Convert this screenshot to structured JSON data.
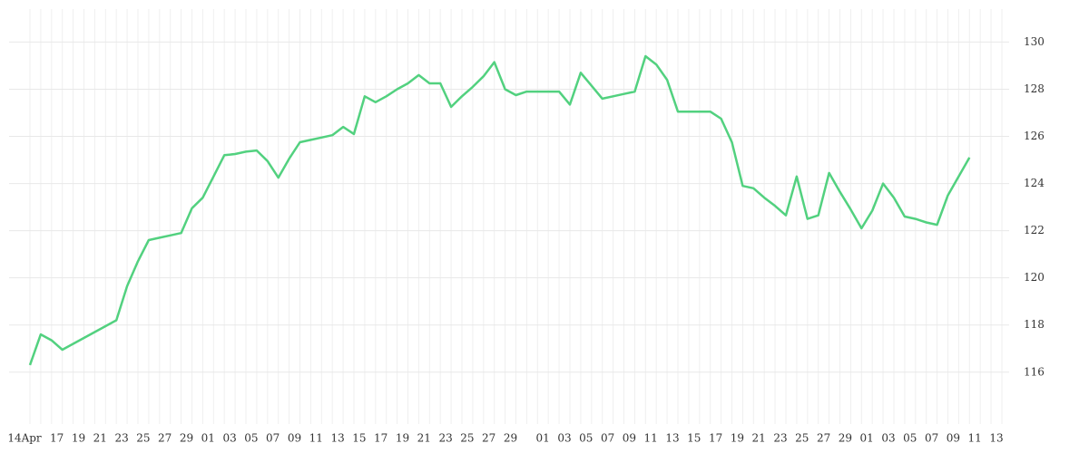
{
  "chart_data": {
    "type": "line",
    "color": "#52d17f",
    "grid": true,
    "categories": [
      "14Apr",
      null,
      null,
      "17",
      null,
      "19",
      null,
      "21",
      null,
      "23",
      null,
      "25",
      null,
      "27",
      null,
      "29",
      null,
      "01",
      null,
      "03",
      null,
      "05",
      null,
      "07",
      null,
      "09",
      null,
      "11",
      null,
      "13",
      null,
      "15",
      null,
      "17",
      null,
      "19",
      null,
      "21",
      null,
      "23",
      null,
      "25",
      null,
      "27",
      null,
      "29",
      null,
      null,
      "01",
      null,
      "03",
      null,
      "05",
      null,
      "07",
      null,
      "09",
      null,
      "11",
      null,
      "13",
      null,
      "15",
      null,
      "17",
      null,
      "19",
      null,
      "21",
      null,
      "23",
      null,
      "25",
      null,
      "27",
      null,
      "29",
      null,
      "01",
      null,
      "03",
      null,
      "05",
      null,
      "07",
      null,
      "09",
      null,
      "11",
      null,
      "13"
    ],
    "values": [
      116.3,
      117.6,
      117.35,
      116.95,
      117.2,
      117.45,
      117.7,
      117.95,
      118.2,
      119.65,
      120.7,
      121.6,
      121.7,
      121.8,
      121.9,
      122.95,
      123.4,
      124.3,
      125.2,
      125.25,
      125.35,
      125.4,
      124.95,
      124.25,
      125.05,
      125.75,
      125.85,
      125.95,
      126.05,
      126.4,
      126.1,
      127.7,
      127.45,
      127.7,
      128.0,
      128.25,
      128.6,
      128.25,
      128.25,
      127.25,
      127.7,
      128.1,
      128.55,
      129.15,
      128.0,
      127.75,
      127.9,
      127.9,
      127.9,
      127.9,
      127.35,
      128.7,
      128.15,
      127.6,
      127.7,
      127.8,
      127.9,
      129.4,
      129.05,
      128.4,
      127.05,
      127.05,
      127.05,
      127.05,
      126.75,
      125.75,
      123.9,
      123.8,
      123.4,
      123.05,
      122.65,
      124.3,
      122.5,
      122.65,
      124.45,
      123.65,
      122.9,
      122.1,
      122.85,
      124.0,
      123.4,
      122.6,
      122.5,
      122.35,
      122.25,
      123.5,
      124.3,
      125.1,
      null,
      null,
      null
    ],
    "ylim": [
      113.8,
      131.4
    ],
    "yticks": [
      116,
      118,
      120,
      122,
      124,
      126,
      128,
      130
    ]
  }
}
